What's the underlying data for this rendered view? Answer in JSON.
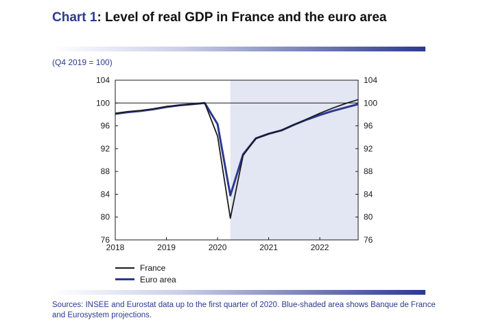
{
  "header": {
    "title_num": "Chart 1",
    "title_rest": ": Level of real GDP in France and the euro area",
    "subtitle": "(Q4 2019 = 100)"
  },
  "footer": {
    "note": "Sources: INSEE and Eurostat data up to the first quarter of 2020. Blue-shaded area shows Banque de France and Eurosystem projections."
  },
  "colors": {
    "accent": "#2b3990",
    "france": "#1a1a1a",
    "euro_area": "#2b3990",
    "shade": "#e3e6f3"
  },
  "chart_data": {
    "type": "line",
    "title": "Level of real GDP in France and the euro area",
    "ylabel": "(Q4 2019 = 100)",
    "ylim": [
      76,
      104
    ],
    "yticks": [
      76,
      80,
      84,
      88,
      92,
      96,
      100,
      104
    ],
    "xlim": [
      2018.0,
      2022.75
    ],
    "xticks": [
      2018,
      2019,
      2020,
      2021,
      2022
    ],
    "reference_line": 100,
    "projection_start": 2020.25,
    "legend_position": "bottom-left",
    "series": [
      {
        "name": "France",
        "x": [
          2018.0,
          2018.25,
          2018.5,
          2018.75,
          2019.0,
          2019.25,
          2019.5,
          2019.75,
          2020.0,
          2020.25,
          2020.5,
          2020.75,
          2021.0,
          2021.25,
          2021.5,
          2021.75,
          2022.0,
          2022.25,
          2022.5,
          2022.75
        ],
        "values": [
          98.2,
          98.5,
          98.7,
          99.0,
          99.4,
          99.6,
          99.8,
          100.0,
          94.2,
          79.8,
          90.8,
          93.8,
          94.6,
          95.2,
          96.2,
          97.2,
          98.2,
          99.1,
          99.9,
          100.6
        ]
      },
      {
        "name": "Euro area",
        "x": [
          2018.0,
          2018.25,
          2018.5,
          2018.75,
          2019.0,
          2019.25,
          2019.5,
          2019.75,
          2020.0,
          2020.25,
          2020.5,
          2020.75,
          2021.0,
          2021.25,
          2021.5,
          2021.75,
          2022.0,
          2022.25,
          2022.5,
          2022.75
        ],
        "values": [
          98.1,
          98.4,
          98.6,
          98.9,
          99.3,
          99.6,
          99.8,
          100.0,
          96.3,
          83.8,
          91.0,
          93.8,
          94.6,
          95.2,
          96.2,
          97.1,
          97.9,
          98.6,
          99.2,
          99.8
        ]
      }
    ]
  }
}
